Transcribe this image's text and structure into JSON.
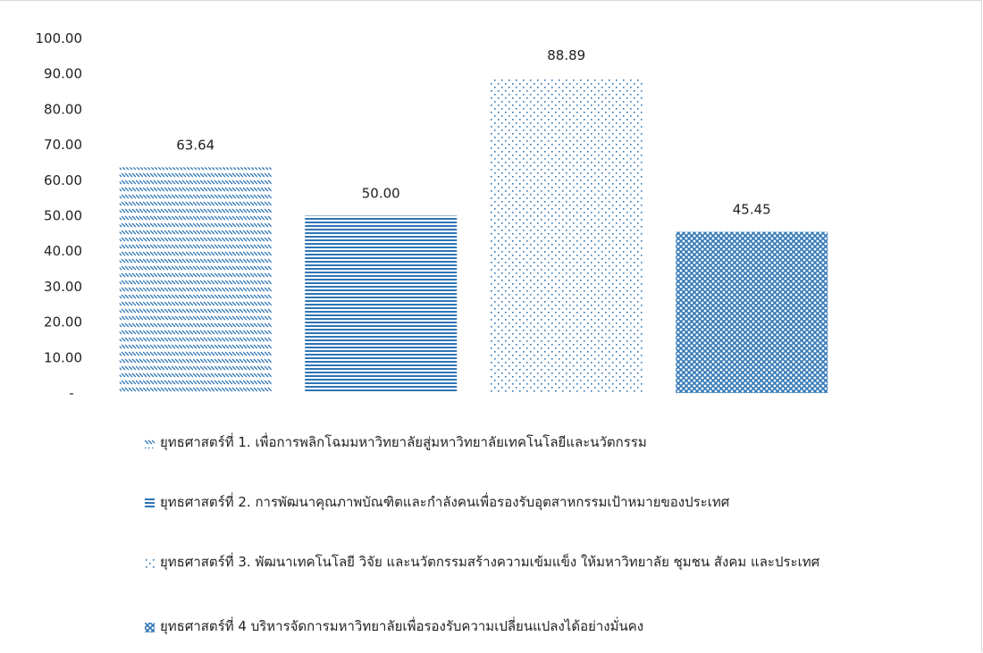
{
  "chart_data": {
    "type": "bar",
    "categories": [
      "ยุทธศาสตร์ที่ 1. เพื่อการพลิกโฉมมหาวิทยาลัยสู่มหาวิทยาลัยเทคโนโลยีและนวัตกรรม",
      "ยุทธศาสตร์ที่ 2. การพัฒนาคุณภาพบัณฑิตและกำลังคนเพื่อรองรับอุตสาหกรรมเป้าหมายของประเทศ",
      "ยุทธศาสตร์ที่ 3. พัฒนาเทคโนโลยี วิจัย และนวัตกรรมสร้างความเข้มแข็ง ให้มหาวิทยาลัย ชุมชน สังคม และประเทศ",
      "ยุทธศาสตร์ที่ 4 บริหารจัดการมหาวิทยาลัยเพื่อรองรับความเปลี่ยนแปลงได้อย่างมั่นคง"
    ],
    "values": [
      63.64,
      50.0,
      88.89,
      45.45
    ],
    "value_labels": [
      "63.64",
      "50.00",
      "88.89",
      "45.45"
    ],
    "ylim": [
      0,
      100
    ],
    "y_ticks": [
      "-",
      "10.00",
      "20.00",
      "30.00",
      "40.00",
      "50.00",
      "60.00",
      "70.00",
      "80.00",
      "90.00",
      "100.00"
    ],
    "legend_position": "bottom",
    "patterns": [
      "diagonal-dash",
      "horizontal-lines",
      "dotted",
      "checker"
    ],
    "color": "#2e75b6"
  },
  "legend": [
    "ยุทธศาสตร์ที่ 1. เพื่อการพลิกโฉมมหาวิทยาลัยสู่มหาวิทยาลัยเทคโนโลยีและนวัตกรรม",
    "ยุทธศาสตร์ที่ 2. การพัฒนาคุณภาพบัณฑิตและกำลังคนเพื่อรองรับอุตสาหกรรมเป้าหมายของประเทศ",
    "ยุทธศาสตร์ที่ 3. พัฒนาเทคโนโลยี วิจัย และนวัตกรรมสร้างความเข้มแข็ง ให้มหาวิทยาลัย ชุมชน สังคม และประเทศ",
    "ยุทธศาสตร์ที่ 4 บริหารจัดการมหาวิทยาลัยเพื่อรองรับความเปลี่ยนแปลงได้อย่างมั่นคง"
  ]
}
